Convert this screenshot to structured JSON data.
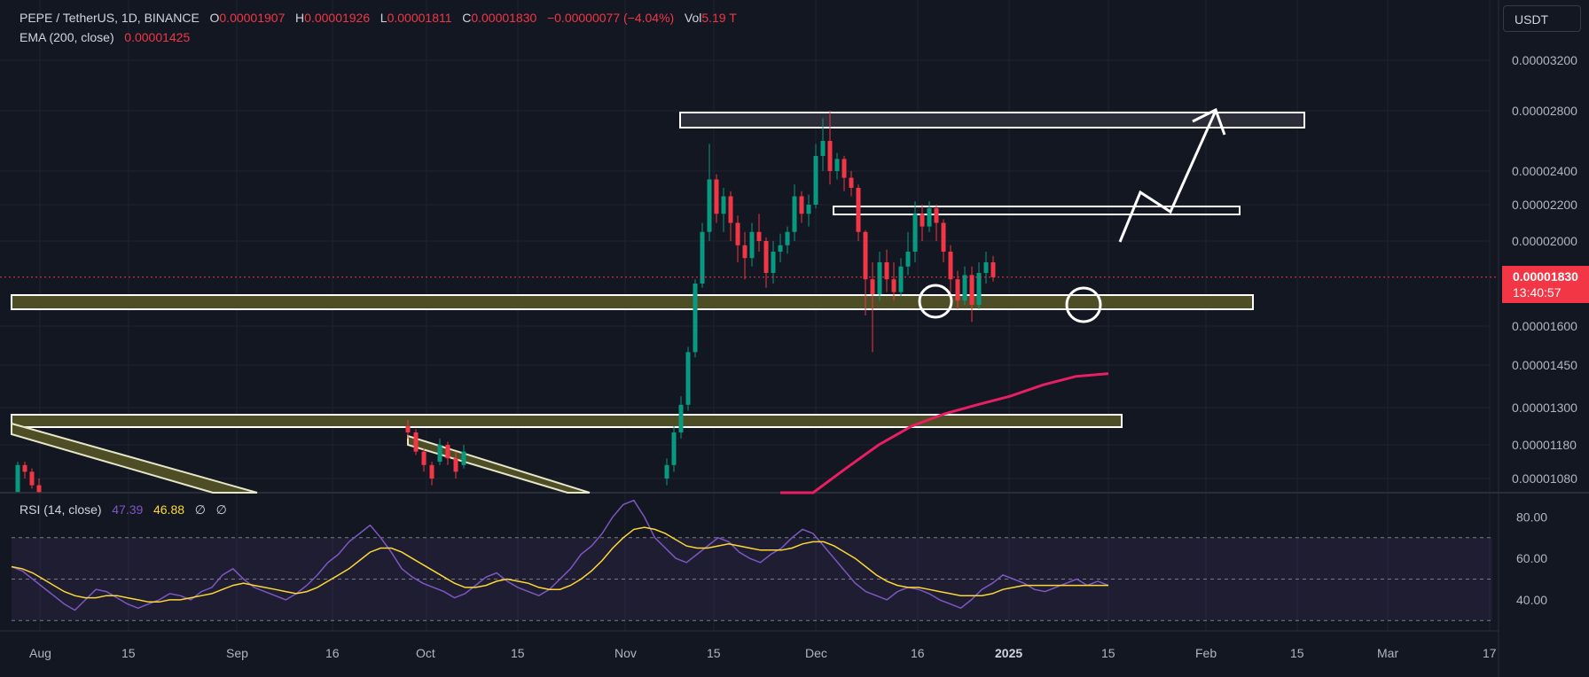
{
  "header": {
    "symbol": "PEPE / TetherUS, 1D, BINANCE",
    "o_label": "O",
    "o_value": "0.00001907",
    "h_label": "H",
    "h_value": "0.00001926",
    "l_label": "L",
    "l_value": "0.00001811",
    "c_label": "C",
    "c_value": "0.00001830",
    "change": "−0.00000077 (−4.04%)",
    "vol_label": "Vol",
    "vol_value": "5.19 T",
    "ema_label": "EMA (200, close)",
    "ema_value": "0.00001425",
    "rsi_label": "RSI (14, close)",
    "rsi_value": "47.39",
    "rsi_ma_value": "46.88",
    "extra_1": "∅",
    "extra_2": "∅"
  },
  "currency_button": "USDT",
  "price_tag": {
    "price": "0.00001830",
    "countdown": "13:40:57"
  },
  "colors": {
    "background": "#131722",
    "up": "#089981",
    "down": "#f23645",
    "ema": "#e91e63",
    "rsi": "#7e57c2",
    "rsi_ma": "#fdd835",
    "zone": "#4e4e26"
  },
  "chart_data": [
    {
      "type": "candlestick",
      "title": "PEPE / TetherUS, 1D, BINANCE",
      "y_scale": "log",
      "y_ticks": [
        "0.00003200",
        "0.00002800",
        "0.00002400",
        "0.00002200",
        "0.00002000",
        "0.00001600",
        "0.00001450",
        "0.00001300",
        "0.00001180",
        "0.00001080"
      ],
      "x_ticks": [
        "Aug",
        "15",
        "Sep",
        "16",
        "Oct",
        "15",
        "Nov",
        "15",
        "Dec",
        "16",
        "2025",
        "15",
        "Feb",
        "15",
        "Mar",
        "17"
      ],
      "last_close": 1.83e-05,
      "candles": [
        [
          1.04e-05,
          1.12e-05,
          1.04e-05,
          1.13e-05
        ],
        [
          1.12e-05,
          1.1e-05,
          1.08e-05,
          1.13e-05
        ],
        [
          1.1e-05,
          1.06e-05,
          1.05e-05,
          1.11e-05
        ],
        [
          1.06e-05,
          1.04e-05,
          1.02e-05,
          1.08e-05
        ],
        [
          1.24e-05,
          1.22e-05,
          1.2e-05,
          1.26e-05
        ],
        [
          1.22e-05,
          1.16e-05,
          1.15e-05,
          1.23e-05
        ],
        [
          1.16e-05,
          1.12e-05,
          1.1e-05,
          1.17e-05
        ],
        [
          1.12e-05,
          1.08e-05,
          1.06e-05,
          1.13e-05
        ],
        [
          1.13e-05,
          1.18e-05,
          1.12e-05,
          1.2e-05
        ],
        [
          1.18e-05,
          1.14e-05,
          1.12e-05,
          1.19e-05
        ],
        [
          1.14e-05,
          1.1e-05,
          1.08e-05,
          1.16e-05
        ],
        [
          1.12e-05,
          1.16e-05,
          1.11e-05,
          1.18e-05
        ],
        [
          1.08e-05,
          1.12e-05,
          1.06e-05,
          1.14e-05
        ],
        [
          1.12e-05,
          1.22e-05,
          1.1e-05,
          1.24e-05
        ],
        [
          1.22e-05,
          1.31e-05,
          1.2e-05,
          1.34e-05
        ],
        [
          1.31e-05,
          1.5e-05,
          1.29e-05,
          1.52e-05
        ],
        [
          1.5e-05,
          1.8e-05,
          1.48e-05,
          1.82e-05
        ],
        [
          1.8e-05,
          2.05e-05,
          1.78e-05,
          2.1e-05
        ],
        [
          2.05e-05,
          2.35e-05,
          2e-05,
          2.58e-05
        ],
        [
          2.35e-05,
          2.15e-05,
          2.1e-05,
          2.38e-05
        ],
        [
          2.15e-05,
          2.25e-05,
          2.05e-05,
          2.3e-05
        ],
        [
          2.25e-05,
          2.1e-05,
          2e-05,
          2.28e-05
        ],
        [
          2.1e-05,
          1.98e-05,
          1.9e-05,
          2.14e-05
        ],
        [
          1.98e-05,
          1.92e-05,
          1.82e-05,
          2.05e-05
        ],
        [
          1.92e-05,
          2.05e-05,
          1.88e-05,
          2.1e-05
        ],
        [
          2.05e-05,
          2e-05,
          1.95e-05,
          2.15e-05
        ],
        [
          2e-05,
          1.85e-05,
          1.78e-05,
          2.02e-05
        ],
        [
          1.85e-05,
          1.95e-05,
          1.8e-05,
          2e-05
        ],
        [
          1.95e-05,
          1.98e-05,
          1.9e-05,
          2.04e-05
        ],
        [
          1.98e-05,
          2.05e-05,
          1.94e-05,
          2.08e-05
        ],
        [
          2.05e-05,
          2.25e-05,
          2e-05,
          2.32e-05
        ],
        [
          2.25e-05,
          2.15e-05,
          2.1e-05,
          2.28e-05
        ],
        [
          2.15e-05,
          2.2e-05,
          2.08e-05,
          2.26e-05
        ],
        [
          2.2e-05,
          2.5e-05,
          2.18e-05,
          2.58e-05
        ],
        [
          2.5e-05,
          2.6e-05,
          2.4e-05,
          2.75e-05
        ],
        [
          2.6e-05,
          2.4e-05,
          2.32e-05,
          2.8e-05
        ],
        [
          2.4e-05,
          2.48e-05,
          2.35e-05,
          2.52e-05
        ],
        [
          2.48e-05,
          2.36e-05,
          2.28e-05,
          2.5e-05
        ],
        [
          2.36e-05,
          2.3e-05,
          2.25e-05,
          2.4e-05
        ],
        [
          2.3e-05,
          2.05e-05,
          2e-05,
          2.32e-05
        ],
        [
          2.05e-05,
          1.82e-05,
          1.65e-05,
          2.06e-05
        ],
        [
          1.82e-05,
          1.75e-05,
          1.5e-05,
          1.9e-05
        ],
        [
          1.75e-05,
          1.9e-05,
          1.72e-05,
          1.95e-05
        ],
        [
          1.9e-05,
          1.82e-05,
          1.76e-05,
          1.96e-05
        ],
        [
          1.82e-05,
          1.76e-05,
          1.72e-05,
          1.9e-05
        ],
        [
          1.76e-05,
          1.88e-05,
          1.74e-05,
          1.92e-05
        ],
        [
          1.88e-05,
          1.95e-05,
          1.84e-05,
          2.05e-05
        ],
        [
          1.95e-05,
          2.15e-05,
          1.9e-05,
          2.22e-05
        ],
        [
          2.15e-05,
          2.08e-05,
          2e-05,
          2.2e-05
        ],
        [
          2.08e-05,
          2.18e-05,
          2.05e-05,
          2.22e-05
        ],
        [
          2.18e-05,
          2.1e-05,
          2e-05,
          2.2e-05
        ],
        [
          2.1e-05,
          1.95e-05,
          1.9e-05,
          2.12e-05
        ],
        [
          1.95e-05,
          1.82e-05,
          1.76e-05,
          1.98e-05
        ],
        [
          1.82e-05,
          1.72e-05,
          1.68e-05,
          1.86e-05
        ],
        [
          1.72e-05,
          1.84e-05,
          1.7e-05,
          1.88e-05
        ],
        [
          1.84e-05,
          1.7e-05,
          1.62e-05,
          1.88e-05
        ],
        [
          1.7e-05,
          1.85e-05,
          1.68e-05,
          1.9e-05
        ],
        [
          1.85e-05,
          1.9e-05,
          1.8e-05,
          1.95e-05
        ],
        [
          1.9e-05,
          1.83e-05,
          1.81e-05,
          1.93e-05
        ]
      ],
      "ema": [
        9.6e-06,
        1.03e-05,
        1.11e-05,
        1.18e-05,
        1.24e-05,
        1.28e-05,
        1.31e-05,
        1.34e-05,
        1.38e-05,
        1.41e-05,
        1.42e-05
      ]
    },
    {
      "type": "line",
      "title": "RSI (14, close)",
      "ylim": [
        25,
        90
      ],
      "y_ticks": [
        "80.00",
        "60.00",
        "40.00"
      ],
      "series": [
        {
          "name": "RSI",
          "values": [
            56,
            54,
            50,
            46,
            42,
            38,
            35,
            40,
            45,
            44,
            41,
            38,
            36,
            38,
            40,
            43,
            42,
            40,
            44,
            46,
            52,
            55,
            50,
            46,
            44,
            42,
            40,
            43,
            47,
            52,
            58,
            62,
            68,
            72,
            76,
            70,
            63,
            55,
            51,
            48,
            46,
            44,
            41,
            43,
            47,
            51,
            53,
            49,
            46,
            44,
            42,
            45,
            50,
            55,
            62,
            66,
            72,
            80,
            86,
            88,
            80,
            70,
            65,
            60,
            58,
            62,
            66,
            70,
            68,
            63,
            60,
            58,
            62,
            65,
            70,
            74,
            72,
            66,
            60,
            54,
            48,
            44,
            42,
            40,
            44,
            46,
            45,
            43,
            40,
            38,
            36,
            40,
            45,
            48,
            52,
            50,
            48,
            45,
            44,
            46,
            48,
            50,
            47,
            49,
            47
          ]
        },
        {
          "name": "RSI MA",
          "values": [
            56,
            55,
            53,
            50,
            47,
            44,
            42,
            41,
            41,
            42,
            42,
            41,
            40,
            39,
            39,
            40,
            40,
            41,
            42,
            43,
            45,
            47,
            48,
            47,
            46,
            45,
            44,
            43,
            44,
            46,
            49,
            52,
            55,
            59,
            63,
            65,
            65,
            63,
            60,
            57,
            54,
            51,
            48,
            46,
            46,
            47,
            49,
            50,
            49,
            48,
            46,
            45,
            45,
            47,
            50,
            54,
            59,
            65,
            70,
            74,
            75,
            74,
            72,
            69,
            66,
            65,
            65,
            66,
            67,
            66,
            65,
            64,
            64,
            64,
            65,
            67,
            68,
            68,
            66,
            63,
            60,
            56,
            52,
            49,
            47,
            46,
            46,
            45,
            44,
            43,
            42,
            42,
            42,
            43,
            45,
            46,
            47,
            47,
            47,
            47,
            47,
            47,
            47,
            47,
            47
          ]
        }
      ]
    }
  ]
}
